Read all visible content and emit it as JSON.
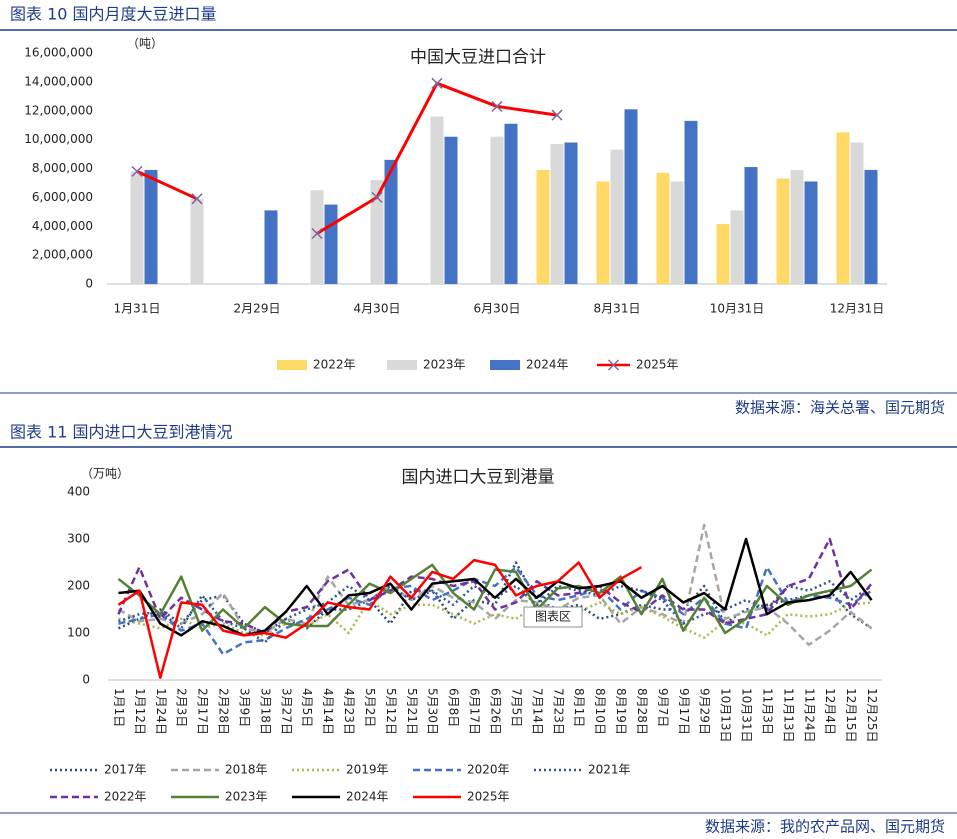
{
  "chart_data": [
    {
      "type": "bar",
      "caption": "图表 10 国内月度大豆进口量",
      "title": "中国大豆进口合计",
      "y_label": "（吨）",
      "categories": [
        "1月31日",
        null,
        "2月29日",
        null,
        "4月30日",
        null,
        "6月30日",
        null,
        "8月31日",
        null,
        "10月31日",
        null,
        "12月31日"
      ],
      "series": [
        {
          "name": "2022年",
          "type": "bar",
          "color": "#ffd966",
          "values": [
            null,
            null,
            null,
            null,
            null,
            null,
            null,
            7900000,
            7100000,
            7700000,
            4150000,
            7300000,
            10500000
          ]
        },
        {
          "name": "2023年",
          "type": "bar",
          "color": "#d9d9d9",
          "values": [
            7800000,
            5900000,
            null,
            6500000,
            7200000,
            11600000,
            10200000,
            9700000,
            9300000,
            7100000,
            5100000,
            7900000,
            9800000
          ]
        },
        {
          "name": "2024年",
          "type": "bar",
          "color": "#4472c4",
          "values": [
            7900000,
            null,
            5100000,
            5500000,
            8600000,
            10200000,
            11100000,
            9800000,
            12100000,
            11300000,
            8100000,
            7100000,
            7900000
          ]
        },
        {
          "name": "2025年",
          "type": "line",
          "color": "#ff0000",
          "marker": "x",
          "marker_color": "#8064a2",
          "values": [
            7800000,
            5900000,
            null,
            3500000,
            6000000,
            13900000,
            12300000,
            11700000,
            null,
            null,
            null,
            null,
            null
          ]
        }
      ],
      "ylim": [
        0,
        16000000
      ],
      "yticks": [
        0,
        {
          "value": 2000000,
          "label": "2,000,000"
        },
        {
          "value": 4000000,
          "label": "4,000,000"
        },
        {
          "value": 6000000,
          "label": "6,000,000"
        },
        {
          "value": 8000000,
          "label": "8,000,000"
        },
        {
          "value": 10000000,
          "label": "10,000,000"
        },
        {
          "value": 12000000,
          "label": "12,000,000"
        },
        {
          "value": 14000000,
          "label": "14,000,000"
        },
        {
          "value": 16000000,
          "label": "16,000,000"
        }
      ],
      "grid": false,
      "legend": "bottom",
      "source": "数据来源：海关总署、国元期货"
    },
    {
      "type": "line",
      "caption": "图表 11 国内进口大豆到港情况",
      "title": "国内进口大豆到港量",
      "y_label": "（万吨）",
      "categories": [
        "1月1日",
        "1月12日",
        "1月24日",
        "2月3日",
        "2月17日",
        "2月28日",
        "3月9日",
        "3月18日",
        "3月27日",
        "4月5日",
        "4月14日",
        "4月23日",
        "5月2日",
        "5月12日",
        "5月21日",
        "5月30日",
        "6月8日",
        "6月17日",
        "6月26日",
        "7月5日",
        "7月14日",
        "7月23日",
        "8月1日",
        "8月10日",
        "8月19日",
        "8月28日",
        "9月7日",
        "9月17日",
        "9月29日",
        "10月13日",
        "10月31日",
        "11月3日",
        "11月13日",
        "11月24日",
        "12月4日",
        "12月15日",
        "12月25日"
      ],
      "series": [
        {
          "name": "2017年",
          "color": "#2f4b7c",
          "dash": "dotted",
          "values": [
            110,
            130,
            150,
            120,
            170,
            180,
            120,
            100,
            130,
            110,
            150,
            150,
            170,
            120,
            190,
            190,
            130,
            170,
            160,
            250,
            170,
            150,
            160,
            130,
            140,
            160,
            150,
            150,
            200,
            120,
            150,
            160,
            170,
            180,
            190,
            140,
            110
          ]
        },
        {
          "name": "2018年",
          "color": "#a6a6a6",
          "dash": "dashed",
          "values": [
            150,
            125,
            130,
            120,
            140,
            185,
            110,
            100,
            130,
            120,
            220,
            160,
            170,
            200,
            170,
            200,
            175,
            165,
            130,
            170,
            165,
            150,
            175,
            180,
            120,
            155,
            140,
            120,
            330,
            130,
            145,
            155,
            120,
            75,
            105,
            145,
            110
          ]
        },
        {
          "name": "2019年",
          "color": "#a9b84a",
          "dash": "dotted",
          "values": [
            130,
            120,
            110,
            130,
            110,
            120,
            100,
            95,
            120,
            115,
            140,
            100,
            170,
            140,
            160,
            160,
            140,
            120,
            140,
            130,
            160,
            130,
            145,
            165,
            140,
            155,
            135,
            110,
            90,
            125,
            120,
            95,
            140,
            135,
            140,
            160,
            165
          ]
        },
        {
          "name": "2020年",
          "color": "#4472c4",
          "dash": "dashed",
          "values": [
            120,
            130,
            140,
            105,
            120,
            55,
            80,
            85,
            110,
            130,
            150,
            175,
            160,
            195,
            200,
            170,
            190,
            215,
            200,
            240,
            180,
            170,
            180,
            195,
            150,
            190,
            175,
            140,
            175,
            120,
            110,
            240,
            165,
            180,
            175,
            160,
            190
          ]
        },
        {
          "name": "2021年",
          "color": "#2e54a0",
          "dash": "dotted",
          "values": [
            125,
            140,
            145,
            110,
            180,
            125,
            110,
            80,
            130,
            150,
            165,
            200,
            170,
            200,
            170,
            190,
            160,
            200,
            175,
            200,
            160,
            200,
            190,
            180,
            200,
            190,
            170,
            120,
            140,
            150,
            170,
            150,
            200,
            190,
            210,
            170,
            200
          ]
        },
        {
          "name": "2022年",
          "color": "#7030a0",
          "dash": "dashed",
          "values": [
            140,
            240,
            130,
            175,
            150,
            125,
            120,
            100,
            145,
            155,
            210,
            235,
            170,
            190,
            220,
            215,
            200,
            210,
            150,
            165,
            210,
            180,
            185,
            200,
            165,
            145,
            180,
            150,
            150,
            120,
            130,
            140,
            200,
            215,
            300,
            150,
            205
          ]
        },
        {
          "name": "2023年",
          "color": "#548235",
          "dash": "solid",
          "values": [
            215,
            180,
            140,
            220,
            105,
            150,
            110,
            155,
            120,
            115,
            115,
            160,
            205,
            185,
            215,
            245,
            185,
            150,
            235,
            230,
            150,
            195,
            200,
            185,
            220,
            140,
            215,
            105,
            175,
            100,
            130,
            200,
            160,
            180,
            190,
            200,
            235
          ]
        },
        {
          "name": "2024年",
          "color": "#000000",
          "dash": "solid",
          "values": [
            185,
            190,
            120,
            95,
            125,
            115,
            95,
            105,
            145,
            200,
            140,
            180,
            185,
            205,
            150,
            205,
            210,
            215,
            175,
            215,
            175,
            210,
            195,
            200,
            210,
            175,
            200,
            165,
            185,
            150,
            300,
            140,
            165,
            170,
            180,
            230,
            170
          ]
        },
        {
          "name": "2025年",
          "color": "#ff0000",
          "dash": "solid",
          "values": [
            160,
            190,
            5,
            165,
            160,
            105,
            95,
            100,
            90,
            120,
            165,
            155,
            150,
            220,
            175,
            230,
            215,
            255,
            245,
            180,
            200,
            210,
            250,
            175,
            215,
            240,
            null,
            null,
            null,
            null,
            null,
            null,
            null,
            null,
            null,
            null,
            null
          ]
        }
      ],
      "ylim": [
        0,
        400
      ],
      "yticks": [
        0,
        100,
        200,
        300,
        400
      ],
      "grid": false,
      "legend": "bottom",
      "annotation": "图表区",
      "source": "数据来源：我的农产品网、国元期货"
    }
  ]
}
